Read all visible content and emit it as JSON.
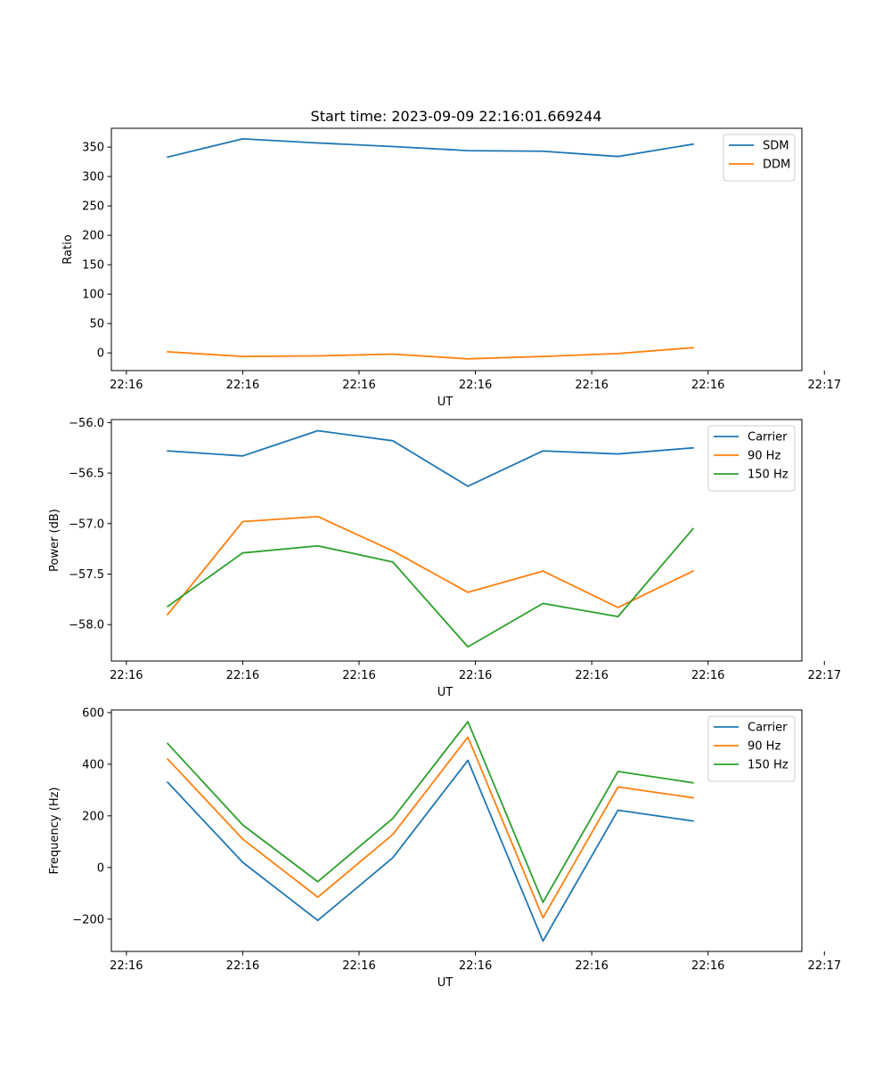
{
  "title": "Start time: 2023-09-09 22:16:01.669244",
  "colors": {
    "c0": "#1f77b4",
    "c1": "#ff7f0e",
    "c2": "#2ca02c"
  },
  "chart_data": [
    {
      "type": "line",
      "name": "ratio",
      "title": "Start time: 2023-09-09 22:16:01.669244",
      "xlabel": "UT",
      "ylabel": "Ratio",
      "x": [
        1,
        2,
        3,
        4,
        5,
        6,
        7,
        8
      ],
      "xlim": [
        0.25,
        9.45
      ],
      "ylim": [
        -30,
        382
      ],
      "xticks": [
        0.45,
        2.0,
        3.55,
        5.1,
        6.65,
        8.2,
        9.75
      ],
      "xtick_labels": [
        "22:16",
        "22:16",
        "22:16",
        "22:16",
        "22:16",
        "22:16",
        "22:17"
      ],
      "yticks": [
        0,
        50,
        100,
        150,
        200,
        250,
        300,
        350
      ],
      "ytick_labels": [
        "0",
        "50",
        "100",
        "150",
        "200",
        "250",
        "300",
        "350"
      ],
      "legend_position": "top-right",
      "series": [
        {
          "name": "SDM",
          "color_key": "c0",
          "values": [
            333,
            364,
            357,
            351,
            344,
            343,
            334,
            355
          ]
        },
        {
          "name": "DDM",
          "color_key": "c1",
          "values": [
            2,
            -6,
            -5,
            -2,
            -10,
            -6,
            -1,
            9
          ]
        }
      ]
    },
    {
      "type": "line",
      "name": "power",
      "xlabel": "UT",
      "ylabel": "Power (dB)",
      "x": [
        1,
        2,
        3,
        4,
        5,
        6,
        7,
        8
      ],
      "xlim": [
        0.25,
        9.45
      ],
      "ylim": [
        -58.36,
        -55.97
      ],
      "xticks": [
        0.45,
        2.0,
        3.55,
        5.1,
        6.65,
        8.2,
        9.75
      ],
      "xtick_labels": [
        "22:16",
        "22:16",
        "22:16",
        "22:16",
        "22:16",
        "22:16",
        "22:17"
      ],
      "yticks": [
        -58.0,
        -57.5,
        -57.0,
        -56.5,
        -56.0
      ],
      "ytick_labels": [
        "−58.0",
        "−57.5",
        "−57.0",
        "−56.5",
        "−56.0"
      ],
      "legend_position": "top-right",
      "series": [
        {
          "name": "Carrier",
          "color_key": "c0",
          "values": [
            -56.28,
            -56.33,
            -56.08,
            -56.18,
            -56.63,
            -56.28,
            -56.31,
            -56.25
          ]
        },
        {
          "name": "90 Hz",
          "color_key": "c1",
          "values": [
            -57.9,
            -56.98,
            -56.93,
            -57.27,
            -57.68,
            -57.47,
            -57.83,
            -57.47
          ]
        },
        {
          "name": "150 Hz",
          "color_key": "c2",
          "values": [
            -57.82,
            -57.29,
            -57.22,
            -57.38,
            -58.22,
            -57.79,
            -57.92,
            -57.05
          ]
        }
      ]
    },
    {
      "type": "line",
      "name": "frequency",
      "xlabel": "UT",
      "ylabel": "Frequency (Hz)",
      "x": [
        1,
        2,
        3,
        4,
        5,
        6,
        7,
        8
      ],
      "xlim": [
        0.25,
        9.45
      ],
      "ylim": [
        -325,
        610
      ],
      "xticks": [
        0.45,
        2.0,
        3.55,
        5.1,
        6.65,
        8.2,
        9.75
      ],
      "xtick_labels": [
        "22:16",
        "22:16",
        "22:16",
        "22:16",
        "22:16",
        "22:16",
        "22:17"
      ],
      "yticks": [
        -200,
        0,
        200,
        400,
        600
      ],
      "ytick_labels": [
        "−200",
        "0",
        "200",
        "400",
        "600"
      ],
      "legend_position": "top-right",
      "series": [
        {
          "name": "Carrier",
          "color_key": "c0",
          "values": [
            330,
            20,
            -205,
            38,
            415,
            -285,
            222,
            180
          ]
        },
        {
          "name": "90 Hz",
          "color_key": "c1",
          "values": [
            420,
            110,
            -115,
            128,
            505,
            -195,
            312,
            270
          ]
        },
        {
          "name": "150 Hz",
          "color_key": "c2",
          "values": [
            480,
            165,
            -55,
            190,
            565,
            -135,
            372,
            328
          ]
        }
      ]
    }
  ]
}
